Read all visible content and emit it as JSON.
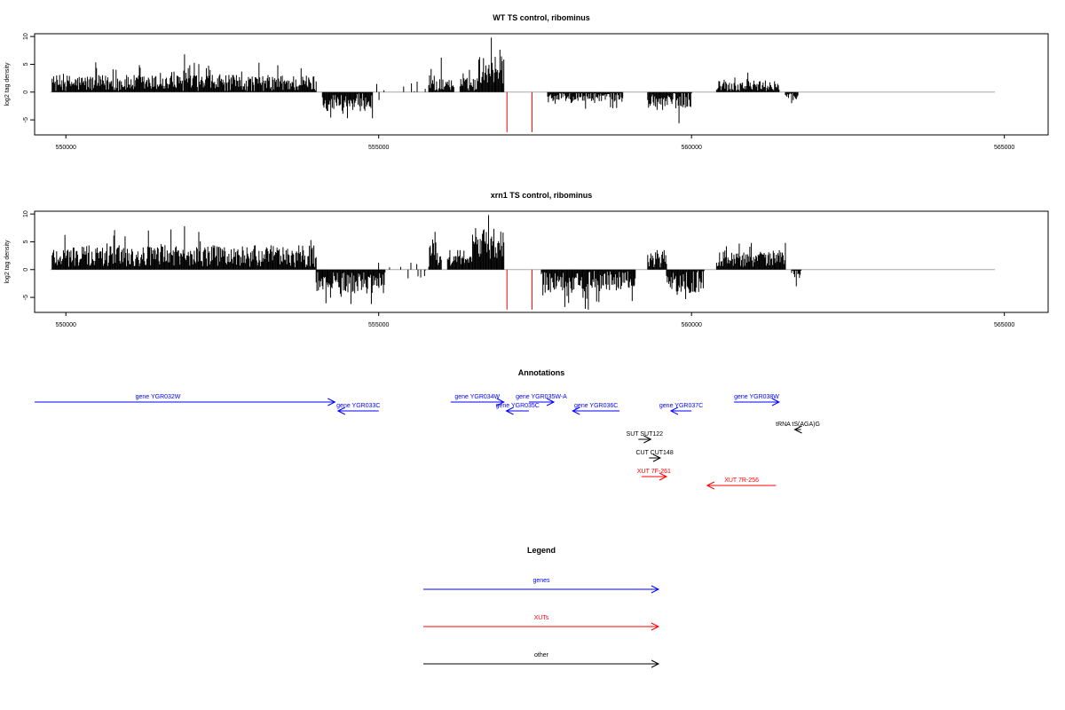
{
  "chart_data": [
    {
      "type": "bar",
      "title": "WT TS control, ribominus",
      "ylabel": "log2 tag density",
      "xlabel": "",
      "xlim": [
        549500,
        565700
      ],
      "ylim": [
        -7.7,
        10.5
      ],
      "xticks": [
        "550000",
        "555000",
        "560000",
        "565000"
      ],
      "yticks": [
        "10",
        "5",
        "0",
        "-5"
      ],
      "baseline": [
        549750,
        564850
      ],
      "colors": {
        "bars": "#000000",
        "highlight": "#ff0000",
        "baseline": "#aaaaaa"
      },
      "highlight_bars": [
        {
          "x": 557050,
          "y": -7.2
        },
        {
          "x": 557450,
          "y": -7.2
        }
      ],
      "segments": [
        {
          "x0": 549780,
          "x1": 554000,
          "mean": 1.6,
          "amp": 1.5,
          "max": 6.8
        },
        {
          "x0": 554100,
          "x1": 554900,
          "mean": -1.8,
          "amp": 1.6,
          "min": -4.7
        },
        {
          "x0": 555800,
          "x1": 556200,
          "mean": 1.2,
          "amp": 1.2,
          "max": 6.2
        },
        {
          "x0": 556300,
          "x1": 556600,
          "mean": 1.4,
          "amp": 1.2,
          "max": 4.0
        },
        {
          "x0": 556600,
          "x1": 557000,
          "mean": 4.0,
          "amp": 2.5,
          "max": 9.8
        },
        {
          "x0": 557700,
          "x1": 558900,
          "mean": -0.8,
          "amp": 0.9,
          "min": -3.0
        },
        {
          "x0": 559300,
          "x1": 559600,
          "mean": -1.5,
          "amp": 1.4,
          "min": -3.2
        },
        {
          "x0": 559600,
          "x1": 560000,
          "mean": -1.4,
          "amp": 1.6,
          "min": -5.6
        },
        {
          "x0": 560400,
          "x1": 561400,
          "mean": 1.1,
          "amp": 1.0,
          "max": 3.5
        },
        {
          "x0": 561500,
          "x1": 561700,
          "mean": -0.7,
          "amp": 0.6,
          "min": -2.0
        }
      ]
    },
    {
      "type": "bar",
      "title": "xrn1 TS control, ribominus",
      "ylabel": "log2 tag density",
      "xlabel": "",
      "xlim": [
        549500,
        565700
      ],
      "ylim": [
        -7.7,
        10.5
      ],
      "xticks": [
        "550000",
        "555000",
        "560000",
        "565000"
      ],
      "yticks": [
        "10",
        "5",
        "0",
        "-5"
      ],
      "baseline": [
        549750,
        564850
      ],
      "colors": {
        "bars": "#000000",
        "highlight": "#ff0000",
        "baseline": "#aaaaaa"
      },
      "highlight_bars": [
        {
          "x": 557050,
          "y": -7.2
        },
        {
          "x": 557450,
          "y": -7.2
        }
      ],
      "segments": [
        {
          "x0": 549780,
          "x1": 554000,
          "mean": 2.4,
          "amp": 2.0,
          "max": 7.8
        },
        {
          "x0": 554000,
          "x1": 555100,
          "mean": -2.4,
          "amp": 2.0,
          "min": -6.2
        },
        {
          "x0": 555800,
          "x1": 556000,
          "mean": 3.0,
          "amp": 2.5,
          "max": 6.8
        },
        {
          "x0": 556100,
          "x1": 556500,
          "mean": 1.5,
          "amp": 1.0,
          "max": 3.5
        },
        {
          "x0": 556500,
          "x1": 557000,
          "mean": 4.5,
          "amp": 3.0,
          "max": 9.8
        },
        {
          "x0": 557600,
          "x1": 559100,
          "mean": -2.2,
          "amp": 2.0,
          "min": -7.2
        },
        {
          "x0": 559300,
          "x1": 559600,
          "mean": 1.8,
          "amp": 1.4,
          "max": 3.5
        },
        {
          "x0": 559600,
          "x1": 560200,
          "mean": -2.2,
          "amp": 2.0,
          "min": -5.3
        },
        {
          "x0": 560400,
          "x1": 561500,
          "mean": 2.0,
          "amp": 1.5,
          "max": 4.8
        },
        {
          "x0": 561600,
          "x1": 561750,
          "mean": -1.0,
          "amp": 1.2,
          "min": -3.0
        }
      ]
    }
  ],
  "annotations": {
    "title": "Annotations",
    "items": [
      {
        "label": "gene YGR032W",
        "type": "gene",
        "start": 549500,
        "end": 554300,
        "strand": "+"
      },
      {
        "label": "gene YGR033C",
        "type": "gene",
        "start": 554350,
        "end": 555000,
        "strand": "-"
      },
      {
        "label": "gene YGR034W",
        "type": "gene",
        "start": 556150,
        "end": 557000,
        "strand": "+"
      },
      {
        "label": "gene YGR035C",
        "type": "gene",
        "start": 557040,
        "end": 557400,
        "strand": "-"
      },
      {
        "label": "gene YGR035W-A",
        "type": "gene",
        "start": 557400,
        "end": 557800,
        "strand": "+"
      },
      {
        "label": "gene YGR036C",
        "type": "gene",
        "start": 558100,
        "end": 558850,
        "strand": "-"
      },
      {
        "label": "gene YGR037C",
        "type": "gene",
        "start": 559670,
        "end": 560000,
        "strand": "-"
      },
      {
        "label": "gene YGR038W",
        "type": "gene",
        "start": 560680,
        "end": 561400,
        "strand": "+"
      },
      {
        "label": "tRNA tS(AGA)G",
        "type": "other",
        "start": 561650,
        "end": 561750,
        "strand": "-"
      },
      {
        "label": "SUT SUT122",
        "type": "other",
        "start": 559150,
        "end": 559350,
        "strand": "+"
      },
      {
        "label": "CUT CUT148",
        "type": "other",
        "start": 559320,
        "end": 559500,
        "strand": "+"
      },
      {
        "label": "XUT 7F-261",
        "type": "xut",
        "start": 559200,
        "end": 559600,
        "strand": "+"
      },
      {
        "label": "XUT 7R-256",
        "type": "xut",
        "start": 560250,
        "end": 561350,
        "strand": "-"
      }
    ],
    "colors": {
      "gene": "#0000ff",
      "xut": "#ff0000",
      "other": "#000000"
    }
  },
  "legend": {
    "title": "Legend",
    "items": [
      {
        "label": "genes",
        "color": "#0000ff"
      },
      {
        "label": "XUTs",
        "color": "#ff0000"
      },
      {
        "label": "other",
        "color": "#000000"
      }
    ]
  }
}
